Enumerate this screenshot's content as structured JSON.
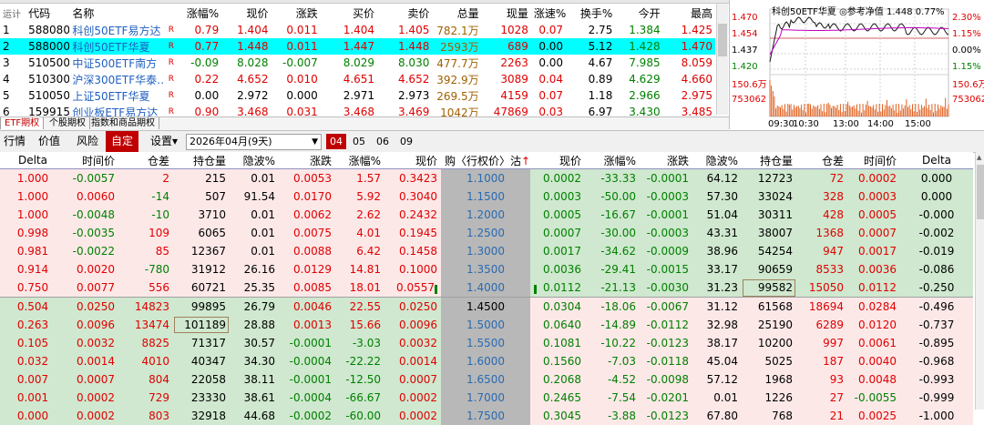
{
  "watchlist": {
    "headers": [
      "代码",
      "名称",
      "涨幅%",
      "现价",
      "涨跌",
      "买价",
      "卖价",
      "总量",
      "现量",
      "涨速%",
      "换手%",
      "今开",
      "最高"
    ],
    "corner_label": "运计",
    "rows": [
      {
        "n": "1",
        "code": "588080",
        "name": "科创50ETF易方达",
        "flag": "R",
        "chg_pct": "0.79",
        "price": "1.404",
        "chg": "0.011",
        "bid": "1.404",
        "ask": "1.405",
        "vol": "782.1万",
        "cur_vol": "1028",
        "speed": "0.07",
        "turnover": "2.75",
        "open": "1.384",
        "high": "1.425"
      },
      {
        "n": "2",
        "code": "588000",
        "name": "科创50ETF华夏",
        "flag": "R",
        "chg_pct": "0.77",
        "price": "1.448",
        "chg": "0.011",
        "bid": "1.447",
        "ask": "1.448",
        "vol": "2593万",
        "cur_vol": "689",
        "speed": "0.00",
        "turnover": "5.12",
        "open": "1.428",
        "high": "1.470"
      },
      {
        "n": "3",
        "code": "510500",
        "name": "中证500ETF南方",
        "flag": "R",
        "chg_pct": "-0.09",
        "price": "8.028",
        "chg": "-0.007",
        "bid": "8.029",
        "ask": "8.030",
        "vol": "477.7万",
        "cur_vol": "2263",
        "speed": "0.00",
        "turnover": "4.67",
        "open": "7.985",
        "high": "8.059"
      },
      {
        "n": "4",
        "code": "510300",
        "name": "沪深300ETF华泰…",
        "flag": "R",
        "chg_pct": "0.22",
        "price": "4.652",
        "chg": "0.010",
        "bid": "4.651",
        "ask": "4.652",
        "vol": "392.9万",
        "cur_vol": "3089",
        "speed": "0.04",
        "turnover": "0.89",
        "open": "4.629",
        "high": "4.660"
      },
      {
        "n": "5",
        "code": "510050",
        "name": "上证50ETF华夏",
        "flag": "R",
        "chg_pct": "0.00",
        "price": "2.972",
        "chg": "0.000",
        "bid": "2.971",
        "ask": "2.973",
        "vol": "269.5万",
        "cur_vol": "4159",
        "speed": "0.07",
        "turnover": "1.18",
        "open": "2.966",
        "high": "2.975"
      },
      {
        "n": "6",
        "code": "159915",
        "name": "创业板ETF易方达",
        "flag": "R",
        "chg_pct": "0.90",
        "price": "3.468",
        "chg": "0.031",
        "bid": "3.468",
        "ask": "3.469",
        "vol": "1042万",
        "cur_vol": "47869",
        "speed": "0.03",
        "turnover": "6.97",
        "open": "3.430",
        "high": "3.485"
      }
    ]
  },
  "tabs": [
    "ETF期权",
    "个股期权",
    "指数和商品期权"
  ],
  "chart": {
    "title": "科创50ETF华夏",
    "ref_label": "◎参考净值",
    "ref_price": "1.448",
    "ref_pct": "0.77%",
    "price_ticks": [
      "1.470",
      "1.454",
      "1.437",
      "1.420"
    ],
    "pct_ticks": [
      "2.30%",
      "1.15%",
      "0.00%",
      "1.15%"
    ],
    "vol_ticks": [
      "150.6万",
      "753062"
    ],
    "vol_ticks_right": [
      "150.6万",
      "753062"
    ],
    "time_ticks": [
      "09:30",
      "10:30",
      "13:00",
      "14:00",
      "15:00"
    ],
    "colors": {
      "price": "#1a1a1a",
      "avg": "#c000c0",
      "vol": "#e06020"
    }
  },
  "toolbar": {
    "items": [
      "行情",
      "价值",
      "风险",
      "自定"
    ],
    "settings": "设置",
    "expiry": "2026年04月(9天)",
    "months": [
      "04",
      "05",
      "06",
      "09"
    ]
  },
  "options": {
    "headers_call": [
      "Delta",
      "时间价",
      "仓差",
      "持仓量",
      "隐波%",
      "涨跌",
      "涨幅%",
      "现价"
    ],
    "header_strike": "购〈行权价〉沽",
    "header_arrow": "↑",
    "headers_put": [
      "现价",
      "涨幅%",
      "涨跌",
      "隐波%",
      "持仓量",
      "仓差",
      "时间价",
      "Delta"
    ],
    "rows": [
      {
        "c": [
          "1.000",
          "-0.0057",
          "2",
          "215",
          "0.01",
          "0.0053",
          "1.57",
          "0.3423"
        ],
        "k": "1.1000",
        "p": [
          "0.0002",
          "-33.33",
          "-0.0001",
          "64.12",
          "12723",
          "72",
          "0.0002",
          "0.000"
        ]
      },
      {
        "c": [
          "1.000",
          "0.0060",
          "-14",
          "507",
          "91.54",
          "0.0170",
          "5.92",
          "0.3040"
        ],
        "k": "1.1500",
        "p": [
          "0.0003",
          "-50.00",
          "-0.0003",
          "57.30",
          "33024",
          "328",
          "0.0003",
          "0.000"
        ]
      },
      {
        "c": [
          "1.000",
          "-0.0048",
          "-10",
          "3710",
          "0.01",
          "0.0062",
          "2.62",
          "0.2432"
        ],
        "k": "1.2000",
        "p": [
          "0.0005",
          "-16.67",
          "-0.0001",
          "51.04",
          "30311",
          "428",
          "0.0005",
          "-0.000"
        ]
      },
      {
        "c": [
          "0.998",
          "-0.0035",
          "109",
          "6065",
          "0.01",
          "0.0075",
          "4.01",
          "0.1945"
        ],
        "k": "1.2500",
        "p": [
          "0.0007",
          "-30.00",
          "-0.0003",
          "43.31",
          "38007",
          "1368",
          "0.0007",
          "-0.002"
        ]
      },
      {
        "c": [
          "0.981",
          "-0.0022",
          "85",
          "12367",
          "0.01",
          "0.0088",
          "6.42",
          "0.1458"
        ],
        "k": "1.3000",
        "p": [
          "0.0017",
          "-34.62",
          "-0.0009",
          "38.96",
          "54254",
          "947",
          "0.0017",
          "-0.019"
        ]
      },
      {
        "c": [
          "0.914",
          "0.0020",
          "-780",
          "31912",
          "26.16",
          "0.0129",
          "14.81",
          "0.1000"
        ],
        "k": "1.3500",
        "p": [
          "0.0036",
          "-29.41",
          "-0.0015",
          "33.17",
          "90659",
          "8533",
          "0.0036",
          "-0.086"
        ]
      },
      {
        "c": [
          "0.750",
          "0.0077",
          "556",
          "60721",
          "25.35",
          "0.0085",
          "18.01",
          "0.0557"
        ],
        "k": "1.4000",
        "p": [
          "0.0112",
          "-21.13",
          "-0.0030",
          "31.23",
          "99582",
          "15050",
          "0.0112",
          "-0.250"
        ]
      },
      {
        "c": [
          "0.504",
          "0.0250",
          "14823",
          "99895",
          "26.79",
          "0.0046",
          "22.55",
          "0.0250"
        ],
        "k": "1.4500",
        "p": [
          "0.0304",
          "-18.06",
          "-0.0067",
          "31.12",
          "61568",
          "18694",
          "0.0284",
          "-0.496"
        ]
      },
      {
        "c": [
          "0.263",
          "0.0096",
          "13474",
          "101189",
          "28.88",
          "0.0013",
          "15.66",
          "0.0096"
        ],
        "k": "1.5000",
        "p": [
          "0.0640",
          "-14.89",
          "-0.0112",
          "32.98",
          "25190",
          "6289",
          "0.0120",
          "-0.737"
        ]
      },
      {
        "c": [
          "0.105",
          "0.0032",
          "8825",
          "71317",
          "30.57",
          "-0.0001",
          "-3.03",
          "0.0032"
        ],
        "k": "1.5500",
        "p": [
          "0.1081",
          "-10.22",
          "-0.0123",
          "38.17",
          "10200",
          "997",
          "0.0061",
          "-0.895"
        ]
      },
      {
        "c": [
          "0.032",
          "0.0014",
          "4010",
          "40347",
          "34.30",
          "-0.0004",
          "-22.22",
          "0.0014"
        ],
        "k": "1.6000",
        "p": [
          "0.1560",
          "-7.03",
          "-0.0118",
          "45.04",
          "5025",
          "187",
          "0.0040",
          "-0.968"
        ]
      },
      {
        "c": [
          "0.007",
          "0.0007",
          "804",
          "22058",
          "38.11",
          "-0.0001",
          "-12.50",
          "0.0007"
        ],
        "k": "1.6500",
        "p": [
          "0.2068",
          "-4.52",
          "-0.0098",
          "57.12",
          "1968",
          "93",
          "0.0048",
          "-0.993"
        ]
      },
      {
        "c": [
          "0.001",
          "0.0002",
          "729",
          "23330",
          "38.61",
          "-0.0004",
          "-66.67",
          "0.0002"
        ],
        "k": "1.7000",
        "p": [
          "0.2465",
          "-7.54",
          "-0.0201",
          "0.01",
          "1226",
          "27",
          "-0.0055",
          "-0.999"
        ]
      },
      {
        "c": [
          "0.000",
          "0.0002",
          "803",
          "32918",
          "44.68",
          "-0.0002",
          "-60.00",
          "0.0002"
        ],
        "k": "1.7500",
        "p": [
          "0.3045",
          "-3.88",
          "-0.0123",
          "67.80",
          "768",
          "21",
          "0.0025",
          "-1.000"
        ]
      }
    ]
  }
}
